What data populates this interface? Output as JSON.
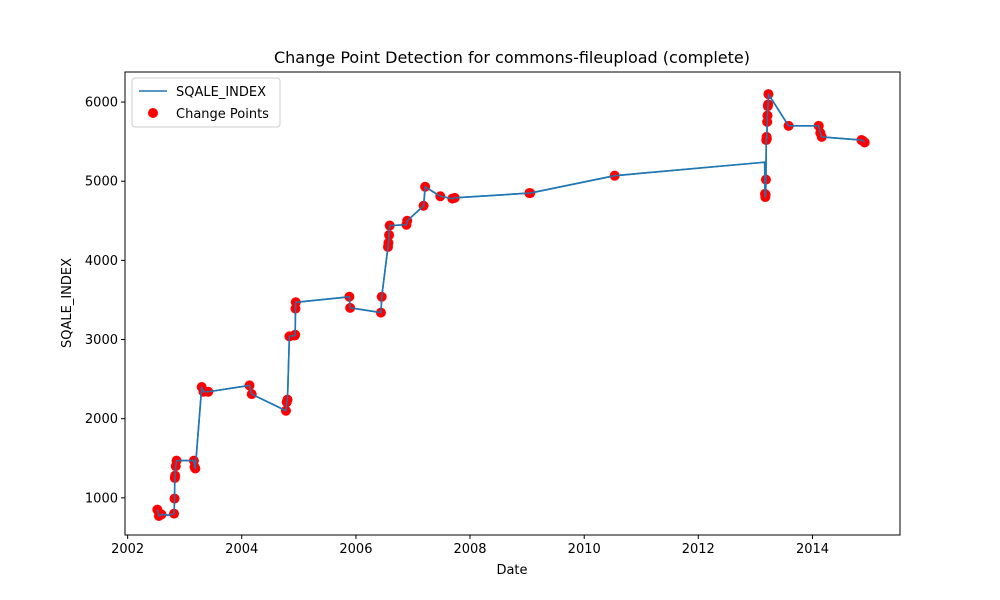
{
  "chart_data": {
    "type": "line",
    "title": "Change Point Detection for commons-fileupload (complete)",
    "xlabel": "Date",
    "ylabel": "SQALE_INDEX",
    "x_scale": "date",
    "xlim": [
      "2001-12-15",
      "2015-07-15"
    ],
    "ylim": [
      530,
      6380
    ],
    "x_ticks": [
      "2002-01-01",
      "2004-01-01",
      "2006-01-01",
      "2008-01-01",
      "2010-01-01",
      "2012-01-01",
      "2014-01-01"
    ],
    "x_tick_labels": [
      "2002",
      "2004",
      "2006",
      "2008",
      "2010",
      "2012",
      "2014"
    ],
    "y_ticks": [
      1000,
      2000,
      3000,
      4000,
      5000,
      6000
    ],
    "y_tick_labels": [
      "1000",
      "2000",
      "3000",
      "4000",
      "5000",
      "6000"
    ],
    "grid": false,
    "legend": "upper left",
    "colors": {
      "line": "#1f77b4",
      "points": "#ff0000"
    },
    "series": [
      {
        "name": "SQALE_INDEX",
        "kind": "line",
        "x": [
          "2002-07-10",
          "2002-07-20",
          "2002-08-05",
          "2002-09-20",
          "2002-10-25",
          "2002-10-28",
          "2002-10-30",
          "2002-11-01",
          "2002-11-05",
          "2002-11-10",
          "2003-03-01",
          "2003-03-05",
          "2003-03-10",
          "2003-04-20",
          "2003-05-01",
          "2003-06-01",
          "2004-02-20",
          "2004-03-05",
          "2004-10-10",
          "2004-10-15",
          "2004-10-20",
          "2004-11-01",
          "2004-12-05",
          "2004-12-08",
          "2004-12-10",
          "2004-12-12",
          "2005-11-20",
          "2005-11-25",
          "2006-06-10",
          "2006-06-15",
          "2006-07-25",
          "2006-07-28",
          "2006-08-01",
          "2006-08-05",
          "2006-11-20",
          "2006-11-25",
          "2007-03-10",
          "2007-03-20",
          "2007-06-25",
          "2007-09-10",
          "2007-09-25",
          "2009-01-15",
          "2009-01-20",
          "2010-07-15",
          "2013-03-01",
          "2013-03-03",
          "2013-03-05",
          "2013-03-07",
          "2013-03-09",
          "2013-03-11",
          "2013-03-13",
          "2013-03-15",
          "2013-03-17",
          "2013-03-19",
          "2013-03-21",
          "2013-03-23",
          "2013-03-25",
          "2013-08-01",
          "2014-02-10",
          "2014-02-20",
          "2014-03-01",
          "2014-11-10",
          "2014-11-20",
          "2014-12-01"
        ],
        "y": [
          850,
          770,
          790,
          780,
          800,
          990,
          1250,
          1280,
          1400,
          1470,
          1470,
          1390,
          1370,
          2400,
          2340,
          2340,
          2420,
          2310,
          2100,
          2210,
          2240,
          3040,
          3050,
          3060,
          3390,
          3470,
          3540,
          3400,
          3340,
          3540,
          4170,
          4220,
          4320,
          4440,
          4450,
          4500,
          4690,
          4930,
          4810,
          4780,
          4790,
          4850,
          4850,
          5070,
          5240,
          4840,
          4800,
          4830,
          5020,
          5520,
          5560,
          5540,
          5750,
          5830,
          5950,
          5970,
          6100,
          5700,
          5700,
          5610,
          5560,
          5520,
          5510,
          5490
        ]
      },
      {
        "name": "Change Points",
        "kind": "scatter",
        "x": [
          "2002-07-10",
          "2002-07-20",
          "2002-08-05",
          "2002-10-25",
          "2002-10-28",
          "2002-10-30",
          "2002-11-01",
          "2002-11-05",
          "2002-11-10",
          "2003-03-01",
          "2003-03-05",
          "2003-03-10",
          "2003-04-20",
          "2003-05-01",
          "2003-06-01",
          "2004-02-20",
          "2004-03-05",
          "2004-10-10",
          "2004-10-15",
          "2004-10-20",
          "2004-11-01",
          "2004-12-05",
          "2004-12-08",
          "2004-12-10",
          "2004-12-12",
          "2005-11-20",
          "2005-11-25",
          "2006-06-10",
          "2006-06-15",
          "2006-07-25",
          "2006-07-28",
          "2006-08-01",
          "2006-08-05",
          "2006-11-20",
          "2006-11-25",
          "2007-03-10",
          "2007-03-20",
          "2007-06-25",
          "2007-09-10",
          "2007-09-25",
          "2009-01-15",
          "2009-01-20",
          "2010-07-15",
          "2013-03-03",
          "2013-03-05",
          "2013-03-07",
          "2013-03-09",
          "2013-03-11",
          "2013-03-13",
          "2013-03-15",
          "2013-03-17",
          "2013-03-19",
          "2013-03-21",
          "2013-03-23",
          "2013-03-25",
          "2013-08-01",
          "2014-02-10",
          "2014-02-20",
          "2014-03-01",
          "2014-11-10",
          "2014-11-20",
          "2014-12-01"
        ],
        "y": [
          850,
          770,
          790,
          800,
          990,
          1250,
          1280,
          1400,
          1470,
          1470,
          1390,
          1370,
          2400,
          2340,
          2340,
          2420,
          2310,
          2100,
          2210,
          2240,
          3040,
          3050,
          3060,
          3390,
          3470,
          3540,
          3400,
          3340,
          3540,
          4170,
          4220,
          4320,
          4440,
          4450,
          4500,
          4690,
          4930,
          4810,
          4780,
          4790,
          4850,
          4850,
          5070,
          4840,
          4800,
          4830,
          5020,
          5520,
          5560,
          5540,
          5750,
          5830,
          5950,
          5970,
          6100,
          5700,
          5700,
          5610,
          5560,
          5520,
          5510,
          5490
        ]
      }
    ]
  }
}
